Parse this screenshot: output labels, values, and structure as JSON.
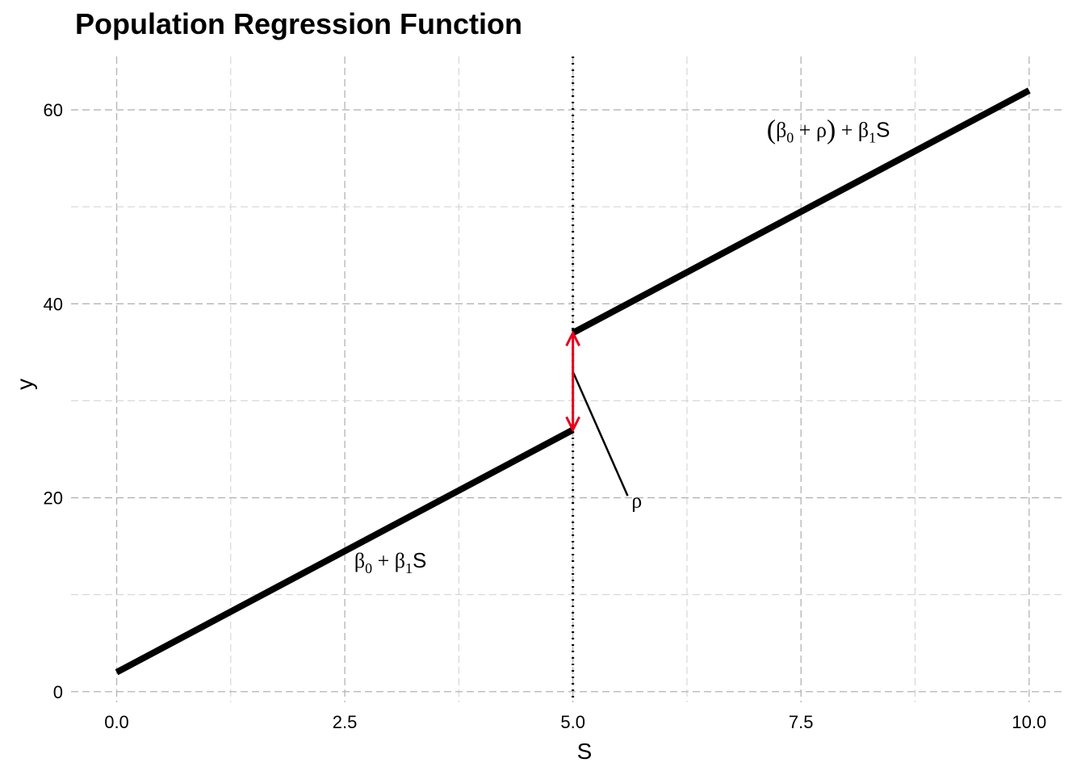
{
  "chart_data": {
    "type": "line",
    "title": "Population Regression Function",
    "xlabel": "S",
    "ylabel": "y",
    "xlim": [
      -0.5,
      10.4
    ],
    "ylim": [
      -1.1,
      65.5
    ],
    "x_ticks": [
      0,
      2.5,
      5,
      7.5,
      10
    ],
    "x_tick_labels": [
      "0.0",
      "2.5",
      "5.0",
      "7.5",
      "10.0"
    ],
    "y_ticks": [
      0,
      20,
      40,
      60
    ],
    "y_tick_labels": [
      "0",
      "20",
      "40",
      "60"
    ],
    "grid": true,
    "legend": "none",
    "series": [
      {
        "x": [
          0,
          5
        ],
        "y": [
          2,
          27
        ],
        "color": "#000000"
      },
      {
        "x": [
          5,
          10
        ],
        "y": [
          37,
          62
        ],
        "color": "#000000"
      }
    ],
    "cutoff": {
      "x": 5,
      "style": "dotted",
      "color": "#000000"
    },
    "jump_arrow": {
      "x": 5,
      "y_from": 27,
      "y_to": 37,
      "color": "#e8001c"
    },
    "annotations": [
      {
        "id": "lower",
        "text": "β0 + β1S",
        "x": 3.0,
        "y": 12.8
      },
      {
        "id": "upper",
        "text": "(β0 + ρ) + β1S",
        "x": 7.8,
        "y": 57.2
      },
      {
        "id": "rho",
        "text": "ρ",
        "x": 5.7,
        "y": 19.0
      }
    ],
    "rho_pointer": {
      "x": [
        5.0,
        5.6
      ],
      "y": [
        33.0,
        20.2
      ]
    }
  }
}
